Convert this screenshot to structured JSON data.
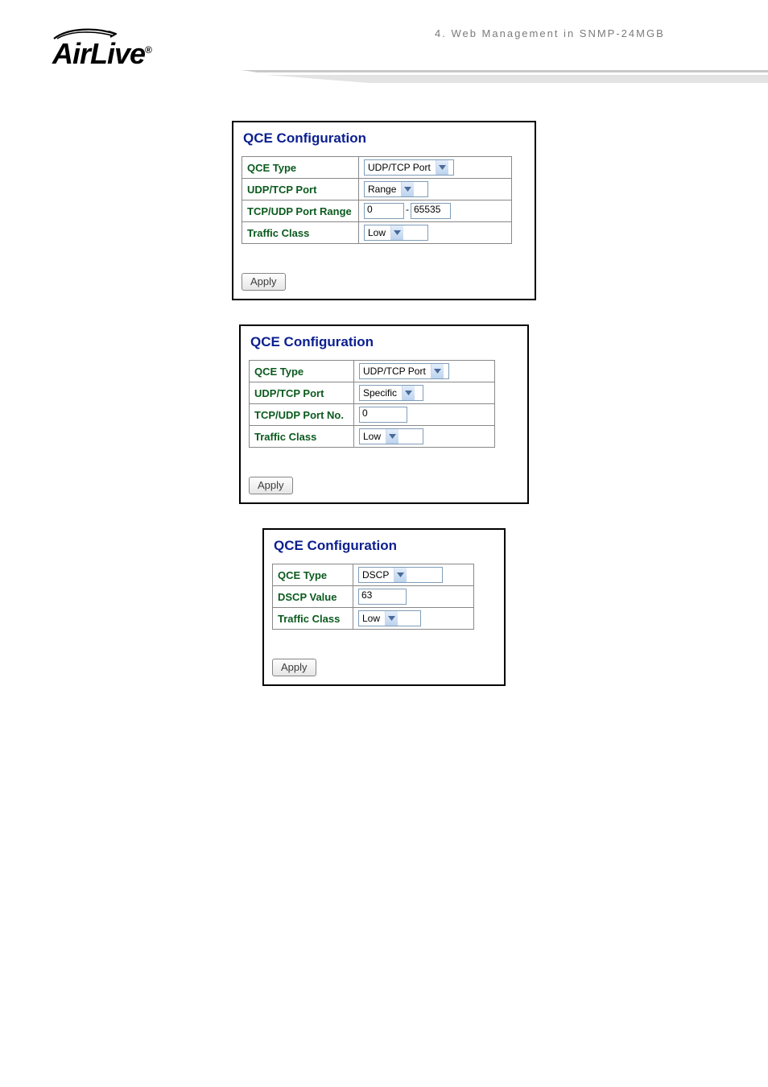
{
  "header": {
    "logo_text": "AirLive",
    "logo_reg": "®",
    "breadcrumb": "4.  Web Management  in  SNMP-24MGB"
  },
  "panels": [
    {
      "title": "QCE Configuration",
      "label_col_width": 145,
      "val_col_width": 190,
      "rows": [
        {
          "label": "QCE Type",
          "type": "select",
          "value": "UDP/TCP Port",
          "select_width": 112
        },
        {
          "label": "UDP/TCP Port",
          "type": "select",
          "value": "Range",
          "select_width": 80
        },
        {
          "label": "TCP/UDP Port Range",
          "type": "range",
          "from": "0",
          "to": "65535",
          "input_width": 50
        },
        {
          "label": "Traffic Class",
          "type": "select",
          "value": "Low",
          "select_width": 80
        }
      ],
      "apply_label": "Apply"
    },
    {
      "title": "QCE Configuration",
      "label_col_width": 130,
      "val_col_width": 175,
      "rows": [
        {
          "label": "QCE Type",
          "type": "select",
          "value": "UDP/TCP Port",
          "select_width": 112
        },
        {
          "label": "UDP/TCP Port",
          "type": "select",
          "value": "Specific",
          "select_width": 80
        },
        {
          "label": "TCP/UDP Port No.",
          "type": "input",
          "value": "0",
          "input_width": 60
        },
        {
          "label": "Traffic Class",
          "type": "select",
          "value": "Low",
          "select_width": 80
        }
      ],
      "apply_label": "Apply"
    },
    {
      "title": "QCE Configuration",
      "label_col_width": 100,
      "val_col_width": 150,
      "rows": [
        {
          "label": "QCE Type",
          "type": "select",
          "value": "DSCP",
          "select_width": 105
        },
        {
          "label": "DSCP Value",
          "type": "input",
          "value": "63",
          "input_width": 60
        },
        {
          "label": "Traffic Class",
          "type": "select",
          "value": "Low",
          "select_width": 78
        }
      ],
      "apply_label": "Apply"
    }
  ]
}
